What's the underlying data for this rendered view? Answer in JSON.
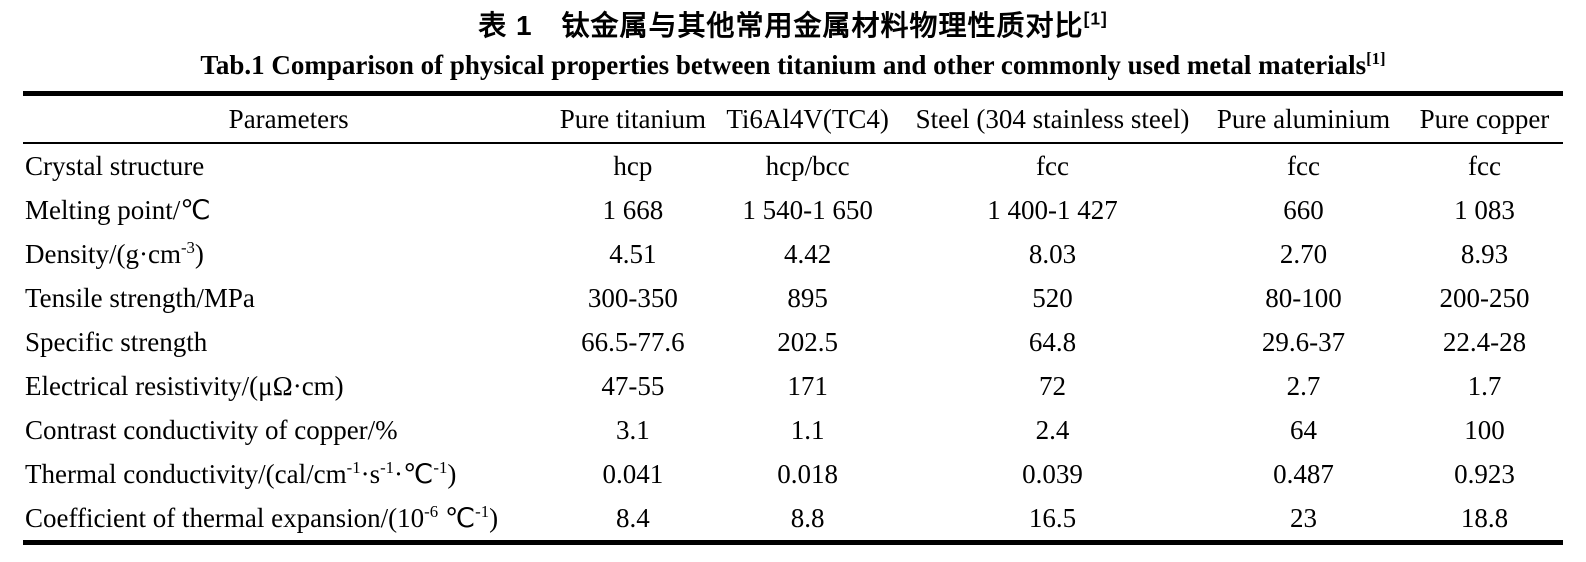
{
  "titles": {
    "chinese": "表 1　钛金属与其他常用金属材料物理性质对比^{[1]}",
    "english": "Tab.1 Comparison of physical properties between titanium and other commonly used metal materials^{[1]}"
  },
  "table": {
    "columns": [
      "Parameters",
      "Pure titanium",
      "Ti6Al4V(TC4)",
      "Steel (304 stainless steel)",
      "Pure aluminium",
      "Pure copper"
    ],
    "rows": [
      {
        "label": "Crystal structure",
        "values": [
          "hcp",
          "hcp/bcc",
          "fcc",
          "fcc",
          "fcc"
        ]
      },
      {
        "label": "Melting point/℃",
        "values": [
          "1 668",
          "1 540-1 650",
          "1 400-1 427",
          "660",
          "1 083"
        ]
      },
      {
        "label": "Density/(g·cm^{-3})",
        "values": [
          "4.51",
          "4.42",
          "8.03",
          "2.70",
          "8.93"
        ]
      },
      {
        "label": "Tensile strength/MPa",
        "values": [
          "300-350",
          "895",
          "520",
          "80-100",
          "200-250"
        ]
      },
      {
        "label": "Specific strength",
        "values": [
          "66.5-77.6",
          "202.5",
          "64.8",
          "29.6-37",
          "22.4-28"
        ]
      },
      {
        "label": "Electrical resistivity/(μΩ·cm)",
        "values": [
          "47-55",
          "171",
          "72",
          "2.7",
          "1.7"
        ]
      },
      {
        "label": "Contrast conductivity of copper/%",
        "values": [
          "3.1",
          "1.1",
          "2.4",
          "64",
          "100"
        ]
      },
      {
        "label": "Thermal conductivity/(cal/cm^{-1}·s^{-1}·℃^{-1})",
        "values": [
          "0.041",
          "0.018",
          "0.039",
          "0.487",
          "0.923"
        ]
      },
      {
        "label": "Coefficient of thermal expansion/(10^{-6}  ℃^{-1})",
        "values": [
          "8.4",
          "8.8",
          "16.5",
          "23",
          "18.8"
        ]
      }
    ]
  }
}
